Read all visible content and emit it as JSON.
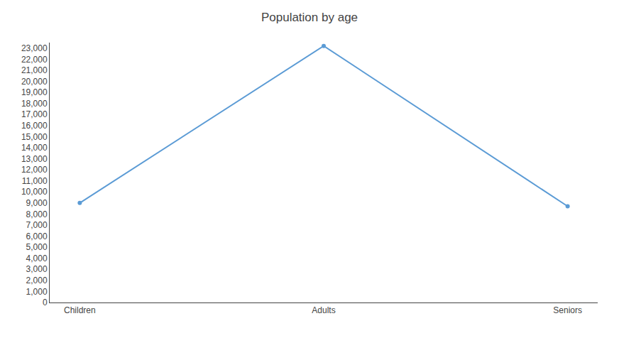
{
  "chart_data": {
    "type": "line",
    "title": "Population by age",
    "categories": [
      "Children",
      "Adults",
      "Seniors"
    ],
    "values": [
      9000,
      23200,
      8700
    ],
    "color": "#5b9bd5",
    "marker": "circle",
    "ylim": [
      0,
      23500
    ],
    "yticks": [
      0,
      {
        "value": 1000,
        "label": "1,000"
      },
      {
        "value": 2000,
        "label": "2,000"
      },
      {
        "value": 3000,
        "label": "3,000"
      },
      {
        "value": 4000,
        "label": "4,000"
      },
      {
        "value": 5000,
        "label": "5,000"
      },
      {
        "value": 6000,
        "label": "6,000"
      },
      {
        "value": 7000,
        "label": "7,000"
      },
      {
        "value": 8000,
        "label": "8,000"
      },
      {
        "value": 9000,
        "label": "9,000"
      },
      {
        "value": 10000,
        "label": "10,000"
      },
      {
        "value": 11000,
        "label": "11,000"
      },
      {
        "value": 12000,
        "label": "12,000"
      },
      {
        "value": 13000,
        "label": "13,000"
      },
      {
        "value": 14000,
        "label": "14,000"
      },
      {
        "value": 15000,
        "label": "15,000"
      },
      {
        "value": 16000,
        "label": "16,000"
      },
      {
        "value": 17000,
        "label": "17,000"
      },
      {
        "value": 18000,
        "label": "18,000"
      },
      {
        "value": 19000,
        "label": "19,000"
      },
      {
        "value": 20000,
        "label": "20,000"
      },
      {
        "value": 21000,
        "label": "21,000"
      },
      {
        "value": 22000,
        "label": "22,000"
      },
      {
        "value": 23000,
        "label": "23,000"
      }
    ],
    "grid": false
  }
}
